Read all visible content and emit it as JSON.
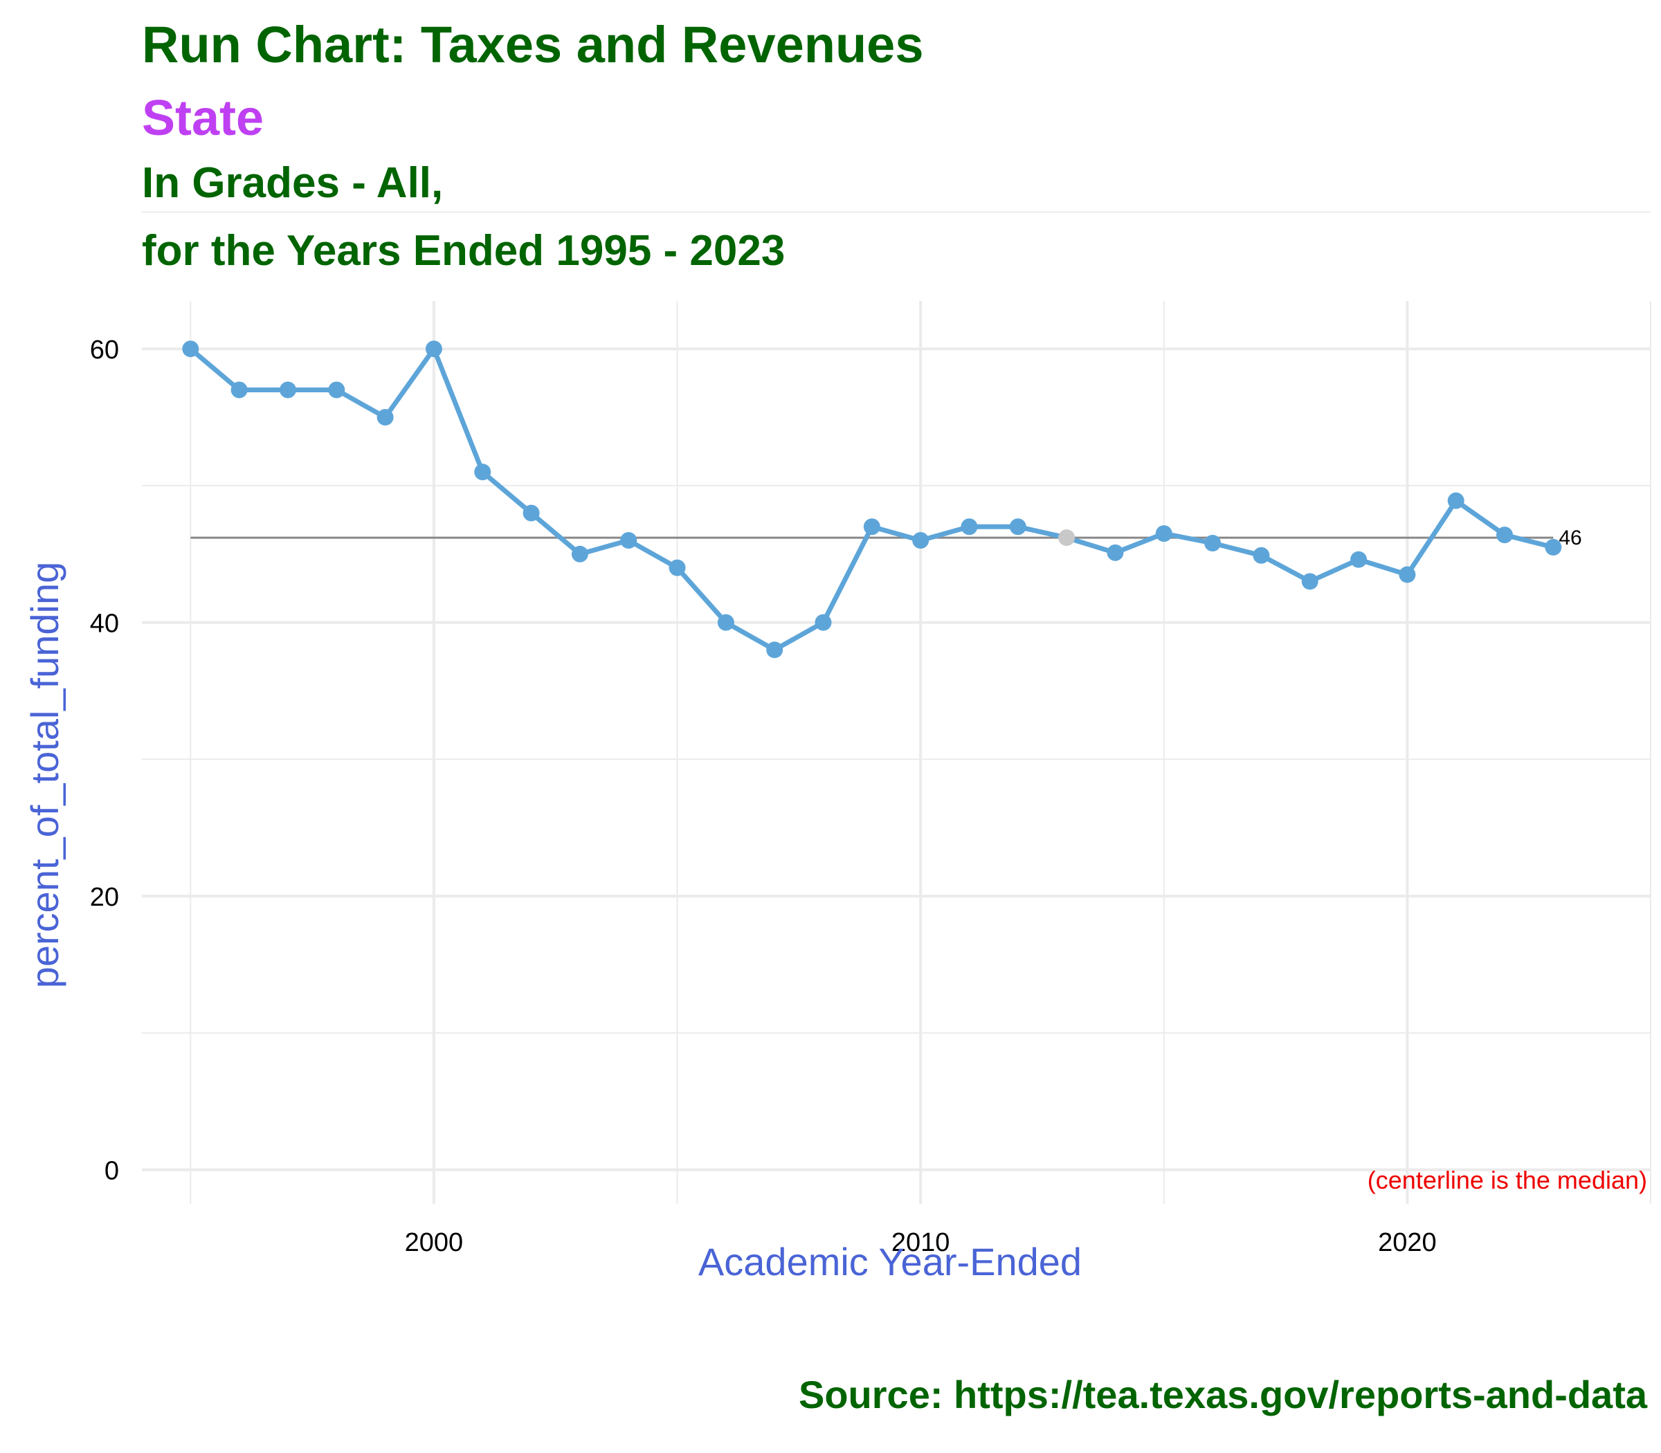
{
  "chart_data": {
    "type": "line",
    "title": "Run Chart: Taxes and Revenues",
    "subtitle": "State",
    "subtitle_line2": "In Grades - All,",
    "subtitle_line3": "for the Years Ended 1995 - 2023",
    "xlabel": "Academic Year-Ended",
    "ylabel": "percent_of_total_funding",
    "caption": "Source:  https://tea.texas.gov/reports-and-data",
    "note": "(centerline is the median)",
    "median": 46.2,
    "median_label": "46",
    "xlim": [
      1994,
      2025
    ],
    "ylim": [
      -2.5,
      63.5
    ],
    "x_ticks": [
      2000,
      2010,
      2020
    ],
    "y_ticks": [
      0,
      20,
      40,
      60
    ],
    "x_tick_labels": [
      "2000",
      "2010",
      "2020"
    ],
    "y_tick_labels": [
      "0",
      "20",
      "40",
      "60"
    ],
    "grid": true,
    "highlight_index": 18,
    "colors": {
      "line": "#5da5d9",
      "point": "#5da5d9",
      "highlight_point": "#c8c8c8",
      "median_line": "#888888",
      "grid": "#ebebeb"
    },
    "x": [
      1995,
      1996,
      1997,
      1998,
      1999,
      2000,
      2001,
      2002,
      2003,
      2004,
      2005,
      2006,
      2007,
      2008,
      2009,
      2010,
      2011,
      2012,
      2013,
      2014,
      2015,
      2016,
      2017,
      2018,
      2019,
      2020,
      2021,
      2022,
      2023
    ],
    "values": [
      60,
      57,
      57,
      57,
      55,
      60,
      51,
      48,
      45,
      46,
      44,
      40,
      38,
      40,
      47,
      46,
      47,
      47,
      46.2,
      45.1,
      46.5,
      45.8,
      44.9,
      43,
      44.6,
      43.5,
      48.9,
      46.4,
      45.5
    ]
  }
}
